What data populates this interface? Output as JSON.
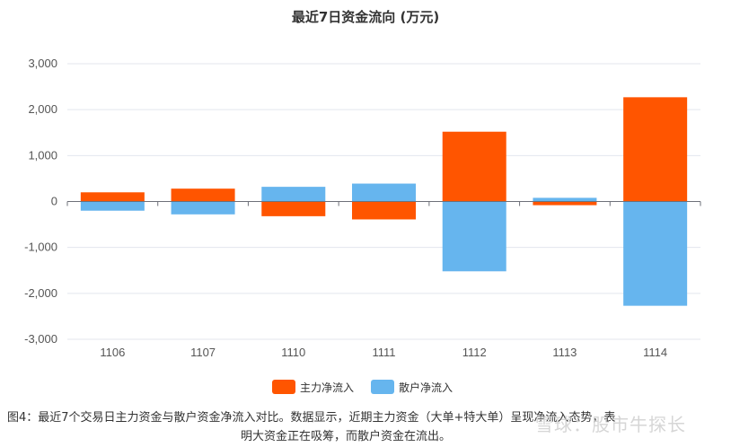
{
  "chart_data": {
    "type": "bar",
    "title": "最近7日资金流向 (万元)",
    "categories": [
      "1106",
      "1107",
      "1110",
      "1111",
      "1112",
      "1113",
      "1114"
    ],
    "series": [
      {
        "name": "主力净流入",
        "color": "#FF5500",
        "values": [
          200,
          280,
          -320,
          -390,
          1520,
          -80,
          2270
        ]
      },
      {
        "name": "散户净流入",
        "color": "#66B5EE",
        "values": [
          -200,
          -280,
          320,
          390,
          -1520,
          80,
          -2270
        ]
      }
    ],
    "ylim": [
      -3000,
      3000
    ],
    "yticks": [
      3000,
      2000,
      1000,
      0,
      -1000,
      -2000,
      -3000
    ],
    "ytick_labels": [
      "3,000",
      "2,000",
      "1,000",
      "0",
      "-1,000",
      "-2,000",
      "-3,000"
    ],
    "grid": true,
    "legend_position": "bottom",
    "xlabel": "",
    "ylabel": ""
  },
  "caption": {
    "line1": "图4：最近7个交易日主力资金与散户资金净流入对比。数据显示，近期主力资金（大单+特大单）呈现净流入态势，表",
    "line2": "明大资金正在吸筹，而散户资金在流出。"
  },
  "watermark": "雪球：股市牛探长"
}
